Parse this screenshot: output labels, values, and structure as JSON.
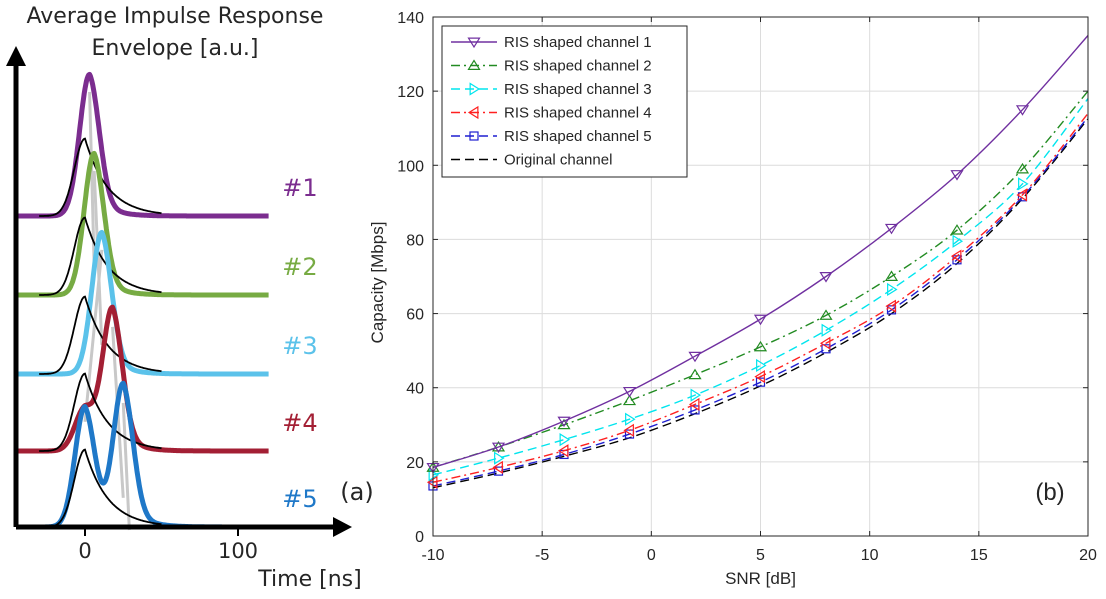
{
  "chart_data": [
    {
      "type": "line",
      "panel_label": "(a)",
      "ylabel_lines": [
        "Average Impulse Response",
        "Envelope [a.u.]"
      ],
      "xlabel": "Time [ns]",
      "xticks": [
        0,
        100
      ],
      "xlim": [
        -45,
        175
      ],
      "color_reference": "#000000",
      "color_guide": "#c8c8c8",
      "channels": [
        {
          "label": "#1",
          "color": "#7b2d8f",
          "reference_peak_ns": 0,
          "peaks": [
            {
              "t": 3,
              "amp": 1.0
            }
          ]
        },
        {
          "label": "#2",
          "color": "#77ab43",
          "reference_peak_ns": 0,
          "peaks": [
            {
              "t": 6,
              "amp": 1.0
            }
          ]
        },
        {
          "label": "#3",
          "color": "#5bc2ea",
          "reference_peak_ns": 0,
          "peaks": [
            {
              "t": 11,
              "amp": 1.0
            }
          ]
        },
        {
          "label": "#4",
          "color": "#a31f34",
          "reference_peak_ns": 0,
          "peaks": [
            {
              "t": 18,
              "amp": 1.0
            },
            {
              "t": 0,
              "amp": 0.3
            }
          ]
        },
        {
          "label": "#5",
          "color": "#1f78c8",
          "reference_peak_ns": 0,
          "peaks": [
            {
              "t": 0,
              "amp": 0.85
            },
            {
              "t": 25,
              "amp": 1.0
            }
          ]
        }
      ]
    },
    {
      "type": "line",
      "panel_label": "(b)",
      "xlabel": "SNR [dB]",
      "ylabel": "Capacity [Mbps]",
      "xlim": [
        -10,
        20
      ],
      "ylim": [
        0,
        140
      ],
      "xticks": [
        -10,
        -5,
        0,
        5,
        10,
        15,
        20
      ],
      "yticks": [
        0,
        20,
        40,
        60,
        80,
        100,
        120,
        140
      ],
      "grid": true,
      "legend_position": "top-left",
      "x": [
        -10,
        -7,
        -4,
        -1,
        2,
        5,
        8,
        11,
        14,
        17,
        20
      ],
      "series": [
        {
          "name": "RIS shaped channel 1",
          "color": "#7030a0",
          "dash": "solid",
          "marker": "triangle-down",
          "values": [
            18.5,
            24,
            31,
            39,
            48.5,
            58.5,
            70,
            83,
            97.5,
            115,
            135
          ]
        },
        {
          "name": "RIS shaped channel 2",
          "color": "#228b22",
          "dash": "dashdot",
          "marker": "triangle-up",
          "values": [
            18.5,
            24,
            30,
            36.5,
            43.5,
            51,
            59.5,
            70,
            82.5,
            99,
            120
          ]
        },
        {
          "name": "RIS shaped channel 3",
          "color": "#00e5ee",
          "dash": "dash",
          "marker": "triangle-right",
          "values": [
            16.5,
            21,
            26,
            31.5,
            38,
            46,
            55.5,
            66.5,
            79.5,
            95,
            118
          ]
        },
        {
          "name": "RIS shaped channel 4",
          "color": "#ff2020",
          "dash": "dashdot",
          "marker": "triangle-left",
          "values": [
            14.5,
            18.5,
            23,
            28.5,
            35.5,
            43,
            52,
            62,
            75.5,
            92,
            114
          ]
        },
        {
          "name": "RIS shaped channel 5",
          "color": "#1f1fd0",
          "dash": "dash",
          "marker": "square",
          "values": [
            13.5,
            17.5,
            22,
            27.5,
            34,
            41.5,
            50.5,
            61,
            74.5,
            91.5,
            113
          ]
        },
        {
          "name": "Original channel",
          "color": "#000000",
          "dash": "dash",
          "marker": "none",
          "values": [
            13,
            17,
            21.5,
            26.5,
            33,
            40.5,
            49.5,
            60,
            73.5,
            91,
            112.5
          ]
        }
      ]
    }
  ]
}
